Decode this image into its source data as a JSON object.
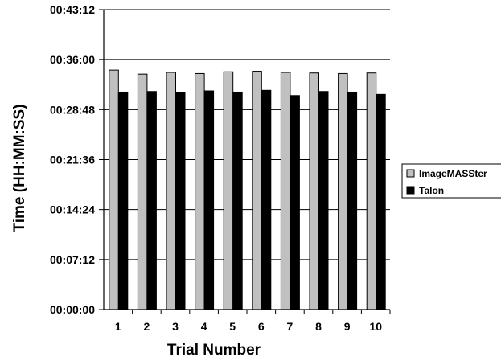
{
  "chart_data": {
    "type": "bar",
    "title": "",
    "xlabel": "Trial Number",
    "ylabel": "Time (HH:MM:SS)",
    "categories": [
      "1",
      "2",
      "3",
      "4",
      "5",
      "6",
      "7",
      "8",
      "9",
      "10"
    ],
    "y_unit": "seconds",
    "ylim": [
      0,
      2592
    ],
    "y_ticks": [
      {
        "value": 0,
        "label": "00:00:00"
      },
      {
        "value": 432,
        "label": "00:07:12"
      },
      {
        "value": 864,
        "label": "00:14:24"
      },
      {
        "value": 1296,
        "label": "00:21:36"
      },
      {
        "value": 1728,
        "label": "00:28:48"
      },
      {
        "value": 2160,
        "label": "00:36:00"
      },
      {
        "value": 2592,
        "label": "00:43:12"
      }
    ],
    "series": [
      {
        "name": "ImageMASSter",
        "color": "#c0c0c0",
        "values": [
          2070,
          2035,
          2050,
          2040,
          2055,
          2060,
          2050,
          2045,
          2040,
          2045
        ]
      },
      {
        "name": "Talon",
        "color": "#000000",
        "values": [
          1880,
          1885,
          1875,
          1890,
          1880,
          1895,
          1850,
          1885,
          1880,
          1860
        ]
      }
    ],
    "grid": {
      "y": true,
      "x": false
    },
    "legend": "right"
  }
}
